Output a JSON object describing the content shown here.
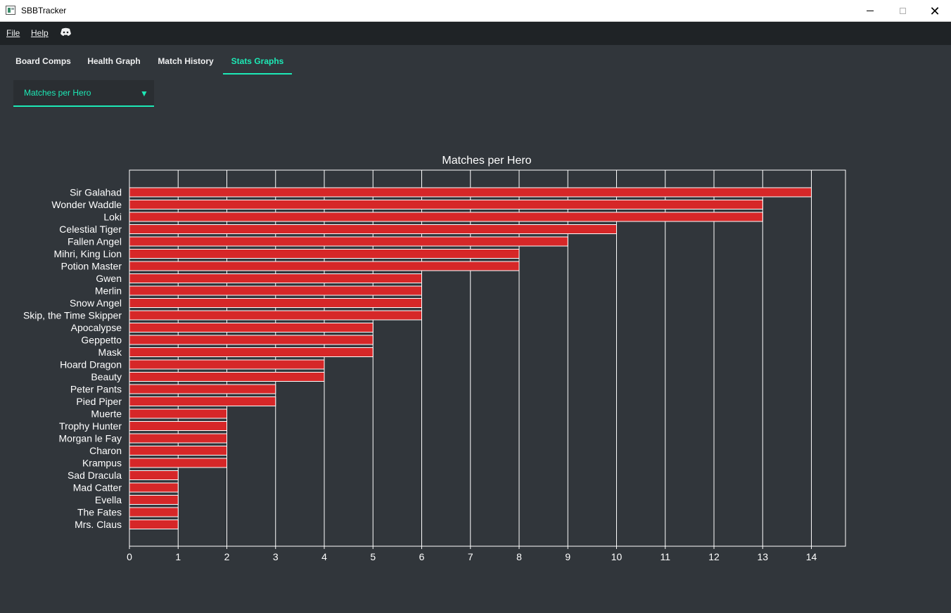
{
  "window": {
    "title": "SBBTracker"
  },
  "menu": {
    "file": "File",
    "help": "Help"
  },
  "tabs": [
    {
      "label": "Board Comps"
    },
    {
      "label": "Health Graph"
    },
    {
      "label": "Match History"
    },
    {
      "label": "Stats Graphs"
    }
  ],
  "dropdown": {
    "selected": "Matches per Hero"
  },
  "colors": {
    "accent": "#1de9b6",
    "bar": "#d62728",
    "background": "#31363b"
  },
  "chart_data": {
    "type": "bar",
    "orientation": "horizontal",
    "title": "Matches per Hero",
    "xlabel": "",
    "ylabel": "",
    "xlim": [
      0,
      14.7
    ],
    "xticks": [
      0,
      1,
      2,
      3,
      4,
      5,
      6,
      7,
      8,
      9,
      10,
      11,
      12,
      13,
      14
    ],
    "grid": true,
    "categories": [
      "Sir Galahad",
      "Wonder Waddle",
      "Loki",
      "Celestial Tiger",
      "Fallen Angel",
      "Mihri, King Lion",
      "Potion Master",
      "Gwen",
      "Merlin",
      "Snow Angel",
      "Skip, the Time Skipper",
      "Apocalypse",
      "Geppetto",
      "Mask",
      "Hoard Dragon",
      "Beauty",
      "Peter Pants",
      "Pied Piper",
      "Muerte",
      "Trophy Hunter",
      "Morgan le Fay",
      "Charon",
      "Krampus",
      "Sad Dracula",
      "Mad Catter",
      "Evella",
      "The Fates",
      "Mrs. Claus"
    ],
    "values": [
      14,
      13,
      13,
      10,
      9,
      8,
      8,
      6,
      6,
      6,
      6,
      5,
      5,
      5,
      4,
      4,
      3,
      3,
      2,
      2,
      2,
      2,
      2,
      1,
      1,
      1,
      1,
      1
    ]
  }
}
